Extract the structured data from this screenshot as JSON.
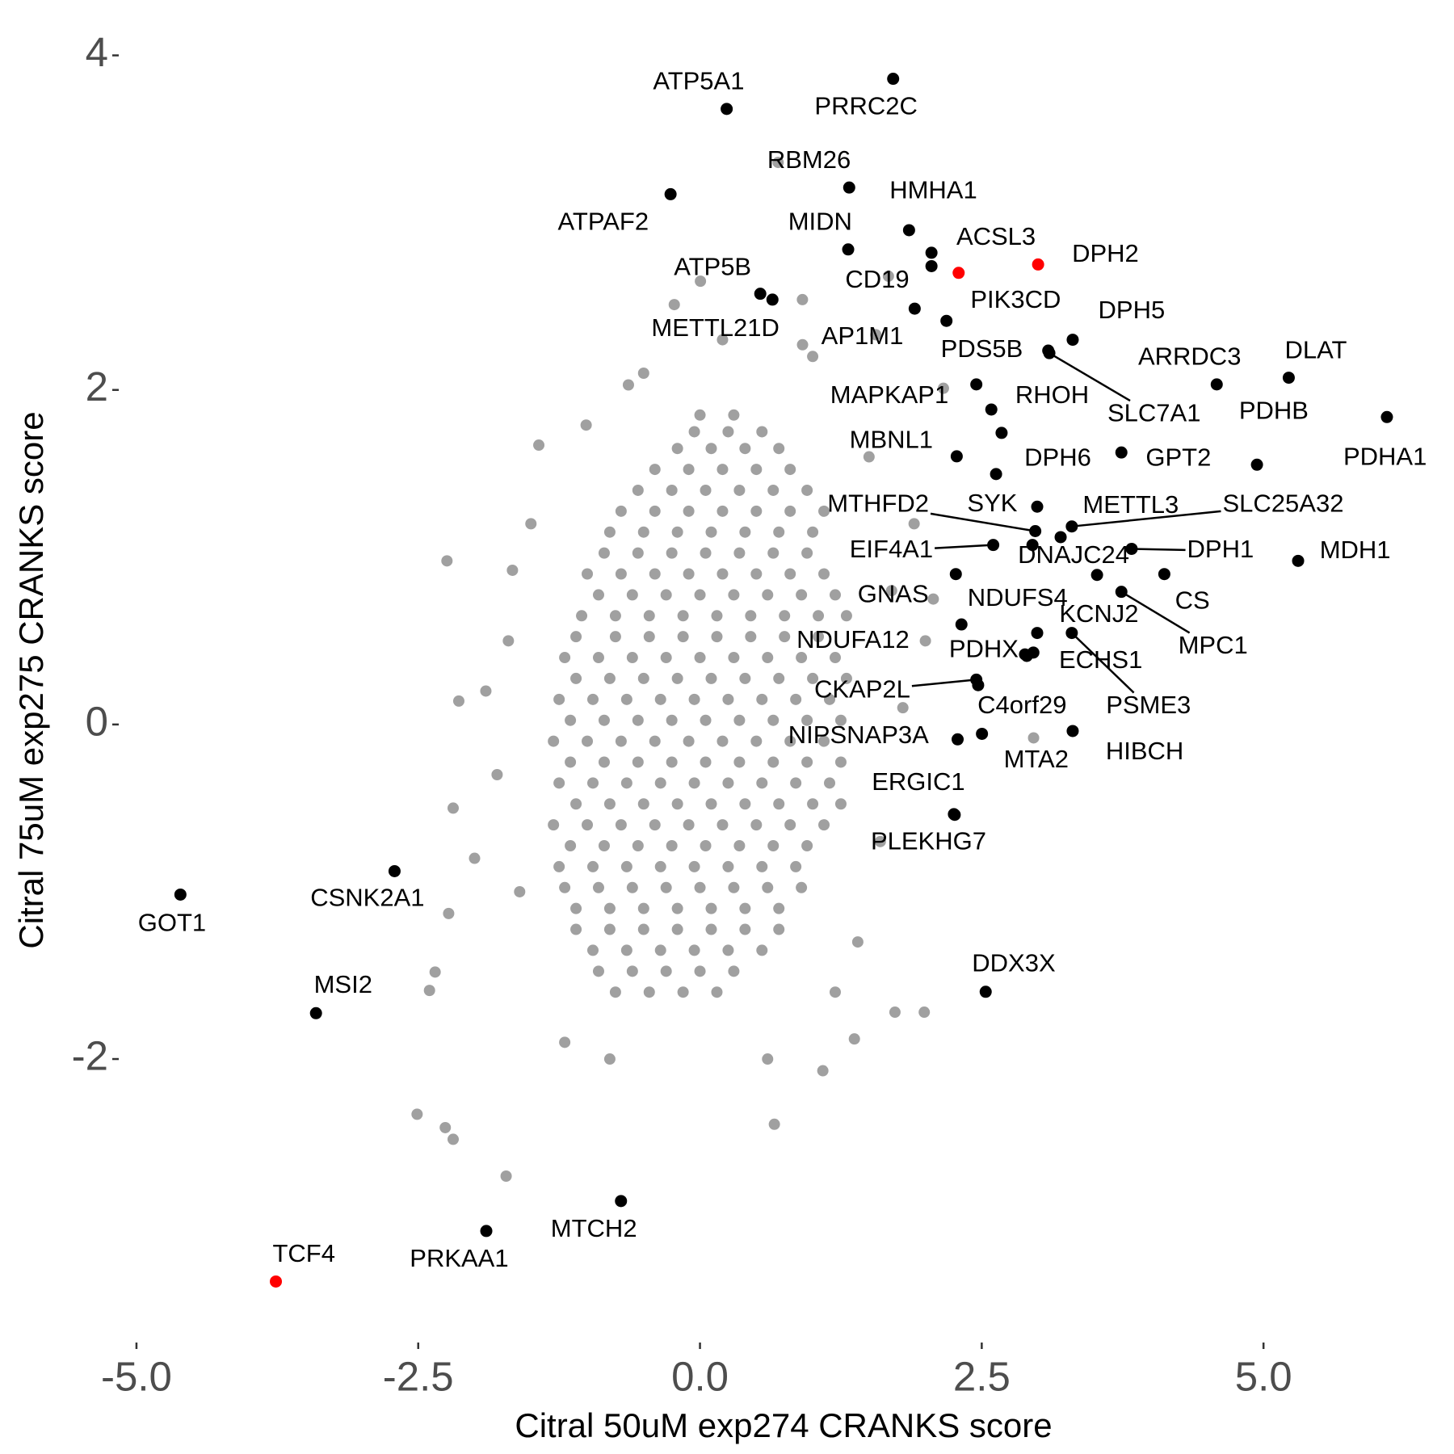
{
  "chart_data": {
    "type": "scatter",
    "x_label": "Citral 50uM exp274 CRANKS score",
    "y_label": "Citral 75uM exp275 CRANKS score",
    "xlim": [
      -5.15,
      6.64
    ],
    "ylim": [
      -3.69,
      4.22
    ],
    "xticks": [
      {
        "value": -5,
        "label": "-5.0"
      },
      -2.5,
      {
        "value": 0,
        "label": "0.0"
      },
      2.5,
      {
        "value": 5,
        "label": "5.0"
      }
    ],
    "yticks": [
      -2,
      0,
      2,
      4
    ],
    "grid": false,
    "series": [
      {
        "color": "#a0a0a0",
        "x": [
          -0.75,
          -0.45,
          -0.15,
          0.15,
          -0.95,
          -0.65,
          -0.35,
          -0.05,
          0.25,
          0.55,
          -1.1,
          -0.8,
          -0.5,
          -0.2,
          0.1,
          0.4,
          0.7,
          -1.25,
          -0.95,
          -0.65,
          -0.35,
          -0.05,
          0.25,
          0.55,
          0.85,
          -1.3,
          -1.0,
          -0.7,
          -0.4,
          -0.1,
          0.2,
          0.5,
          0.8,
          1.1,
          -1.25,
          -0.95,
          -0.65,
          -0.35,
          -0.05,
          0.25,
          0.55,
          0.85,
          1.15,
          -1.3,
          -1.0,
          -0.7,
          -0.4,
          -0.1,
          0.2,
          0.5,
          0.8,
          1.1,
          -1.25,
          -0.95,
          -0.65,
          -0.35,
          -0.05,
          0.25,
          0.55,
          0.85,
          1.15,
          -1.2,
          -0.9,
          -0.6,
          -0.3,
          0,
          0.3,
          0.6,
          0.9,
          1.2,
          -1.05,
          -0.75,
          -0.45,
          -0.15,
          0.15,
          0.45,
          0.75,
          1.05,
          1.3,
          -1.0,
          -0.7,
          -0.4,
          -0.1,
          0.2,
          0.5,
          0.8,
          1.1,
          -0.8,
          -0.5,
          -0.2,
          0.1,
          0.4,
          0.7,
          1.0,
          -0.55,
          -0.25,
          0.05,
          0.35,
          0.65,
          0.95,
          -0.2,
          0.1,
          0.4,
          0.7,
          0,
          0.3,
          -0.9,
          -0.6,
          -0.3,
          0,
          0.3,
          -1.1,
          -0.8,
          -0.5,
          -0.2,
          0.1,
          0.4,
          0.7,
          -1.2,
          -0.9,
          -0.6,
          -0.3,
          0,
          0.3,
          0.6,
          0.9,
          -1.15,
          -0.85,
          -0.55,
          -0.25,
          0.05,
          0.35,
          0.65,
          0.95,
          -1.1,
          -0.8,
          -0.5,
          -0.2,
          0.1,
          0.4,
          0.7,
          1.0,
          1.25,
          -1.15,
          -0.85,
          -0.55,
          -0.25,
          0.05,
          0.35,
          0.65,
          0.95,
          1.25,
          -1.15,
          -0.85,
          -0.55,
          -0.25,
          0.05,
          0.35,
          0.65,
          0.95,
          1.25,
          -1.1,
          -0.8,
          -0.5,
          -0.2,
          0.1,
          0.4,
          0.7,
          1.0,
          1.3,
          -1.1,
          -0.75,
          -0.45,
          -0.15,
          0.15,
          0.45,
          0.75,
          1.05,
          -0.9,
          -0.6,
          -0.3,
          0,
          0.3,
          0.6,
          0.9,
          1.2,
          -0.85,
          -0.55,
          -0.25,
          0.05,
          0.35,
          0.65,
          0.95,
          -0.7,
          -0.4,
          -0.1,
          0.2,
          0.5,
          0.8,
          1.1,
          -0.4,
          -0.1,
          0.2,
          0.5,
          0.8,
          -0.05,
          0.25,
          0.55,
          -2.245,
          -1.664,
          -1.01,
          -1.43,
          -0.635,
          0.004,
          -0.228,
          0.693,
          1.672,
          0.909,
          0.91,
          -2.14,
          -2.19,
          -2.51,
          -2.26,
          -2.19,
          -1.72,
          0.66,
          1.09,
          1.73,
          1.99,
          1.37,
          2.96,
          2.07,
          1.56,
          2.16,
          -2.4,
          -2.35,
          -2.23,
          -1.7,
          -1.8,
          -1.6,
          -1.5,
          1.7,
          1.8,
          1.6,
          1.5,
          -1.2,
          0.6,
          1.0,
          -0.5,
          1.9,
          -2.0,
          1.4,
          -1.9,
          0.2,
          1.2,
          -0.8,
          2.0
        ],
        "values": [
          -1.6,
          -1.6,
          -1.6,
          -1.6,
          -1.35,
          -1.35,
          -1.35,
          -1.35,
          -1.35,
          -1.35,
          -1.1,
          -1.1,
          -1.1,
          -1.1,
          -1.1,
          -1.1,
          -1.1,
          -0.85,
          -0.85,
          -0.85,
          -0.85,
          -0.85,
          -0.85,
          -0.85,
          -0.85,
          -0.6,
          -0.6,
          -0.6,
          -0.6,
          -0.6,
          -0.6,
          -0.6,
          -0.6,
          -0.6,
          -0.35,
          -0.35,
          -0.35,
          -0.35,
          -0.35,
          -0.35,
          -0.35,
          -0.35,
          -0.35,
          -0.1,
          -0.1,
          -0.1,
          -0.1,
          -0.1,
          -0.1,
          -0.1,
          -0.1,
          -0.1,
          0.15,
          0.15,
          0.15,
          0.15,
          0.15,
          0.15,
          0.15,
          0.15,
          0.15,
          0.4,
          0.4,
          0.4,
          0.4,
          0.4,
          0.4,
          0.4,
          0.4,
          0.4,
          0.65,
          0.65,
          0.65,
          0.65,
          0.65,
          0.65,
          0.65,
          0.65,
          0.65,
          0.9,
          0.9,
          0.9,
          0.9,
          0.9,
          0.9,
          0.9,
          0.9,
          1.15,
          1.15,
          1.15,
          1.15,
          1.15,
          1.15,
          1.15,
          1.4,
          1.4,
          1.4,
          1.4,
          1.4,
          1.4,
          1.65,
          1.65,
          1.65,
          1.65,
          1.85,
          1.85,
          -1.475,
          -1.475,
          -1.475,
          -1.475,
          -1.475,
          -1.225,
          -1.225,
          -1.225,
          -1.225,
          -1.225,
          -1.225,
          -1.225,
          -0.975,
          -0.975,
          -0.975,
          -0.975,
          -0.975,
          -0.975,
          -0.975,
          -0.975,
          -0.725,
          -0.725,
          -0.725,
          -0.725,
          -0.725,
          -0.725,
          -0.725,
          -0.725,
          -0.475,
          -0.475,
          -0.475,
          -0.475,
          -0.475,
          -0.475,
          -0.475,
          -0.475,
          -0.475,
          -0.225,
          -0.225,
          -0.225,
          -0.225,
          -0.225,
          -0.225,
          -0.225,
          -0.225,
          -0.225,
          0.025,
          0.025,
          0.025,
          0.025,
          0.025,
          0.025,
          0.025,
          0.025,
          0.025,
          0.275,
          0.275,
          0.275,
          0.275,
          0.275,
          0.275,
          0.275,
          0.275,
          0.275,
          0.525,
          0.525,
          0.525,
          0.525,
          0.525,
          0.525,
          0.525,
          0.525,
          0.775,
          0.775,
          0.775,
          0.775,
          0.775,
          0.775,
          0.775,
          0.775,
          1.025,
          1.025,
          1.025,
          1.025,
          1.025,
          1.025,
          1.025,
          1.275,
          1.275,
          1.275,
          1.275,
          1.275,
          1.275,
          1.275,
          1.525,
          1.525,
          1.525,
          1.525,
          1.525,
          1.75,
          1.75,
          1.75,
          0.978,
          0.922,
          1.79,
          1.67,
          2.03,
          2.65,
          2.51,
          3.36,
          2.68,
          2.54,
          2.27,
          0.14,
          -0.5,
          -2.33,
          -2.41,
          -2.48,
          -2.7,
          -2.39,
          -2.07,
          -1.72,
          -1.72,
          -1.88,
          -0.08,
          0.75,
          2.33,
          2.01,
          -1.59,
          -1.48,
          -1.13,
          0.5,
          -0.3,
          -1.0,
          1.2,
          0.8,
          0.1,
          -0.7,
          1.6,
          -1.9,
          -2.0,
          2.2,
          2.1,
          1.2,
          -0.8,
          -1.3,
          0.2,
          2.3,
          -1.6,
          -2.0,
          0.5
        ]
      },
      {
        "color": "#000000",
        "labels": [
          "ATP5A1",
          "PRRC2C",
          "RBM26",
          "HMHA1",
          "ATPAF2",
          "MIDN",
          null,
          "CD19",
          "ATP5B",
          "METTL21D",
          "PIK3CD",
          "AP1M1",
          "DPH5",
          "PDS5B",
          "SLC7A1",
          "ARRDC3",
          "DLAT",
          "PDHB",
          "PDHA1",
          "MAPKAP1",
          "RHOH",
          null,
          "MBNL1",
          "DPH6",
          "GPT2",
          "SYK",
          "MTHFD2",
          "METTL3",
          "SLC25A32",
          "EIF4A1",
          "DNAJC24",
          "DPH1",
          "MDH1",
          "CS",
          null,
          "GNAS",
          "NDUFS4",
          "KCNJ2",
          "MPC1",
          "NDUFA12",
          "PDHX",
          "ECHS1",
          "PSME3",
          "CKAP2L",
          "C4orf29",
          "NIPSNAP3A",
          "MTA2",
          "HIBCH",
          "ERGIC1",
          "PLEKHG7",
          "DDX3X",
          "CSNK2A1",
          "GOT1",
          "MSI2",
          "MTCH2",
          "PRKAA1"
        ],
        "x": [
          0.237,
          1.714,
          1.324,
          1.855,
          -0.261,
          1.315,
          2.054,
          2.054,
          0.535,
          0.643,
          1.905,
          2.187,
          3.307,
          3.09,
          3.1,
          4.585,
          5.224,
          4.942,
          6.095,
          2.452,
          2.585,
          2.676,
          2.278,
          2.627,
          3.739,
          2.992,
          2.975,
          3.2,
          3.299,
          2.602,
          2.95,
          3.83,
          5.307,
          4.12,
          3.523,
          2.27,
          2.32,
          2.992,
          3.739,
          2.884,
          2.958,
          2.9,
          3.299,
          2.452,
          2.468,
          2.286,
          2.502,
          3.307,
          2.253,
          2.26,
          2.535,
          -2.71,
          -4.61,
          -3.407,
          -0.701,
          -1.896
        ],
        "values": [
          3.68,
          3.86,
          3.21,
          2.955,
          3.17,
          2.84,
          2.82,
          2.74,
          2.575,
          2.54,
          2.486,
          2.413,
          2.3,
          2.235,
          2.22,
          2.033,
          2.073,
          1.553,
          1.838,
          2.033,
          1.883,
          1.743,
          1.603,
          1.497,
          1.626,
          1.302,
          1.156,
          1.12,
          1.184,
          1.073,
          1.073,
          1.05,
          0.978,
          0.899,
          0.894,
          0.899,
          0.598,
          0.547,
          0.793,
          0.419,
          0.43,
          0.41,
          0.547,
          0.268,
          0.235,
          -0.089,
          -0.056,
          -0.039,
          -0.536,
          -0.54,
          -1.598,
          -0.877,
          -1.017,
          -1.726,
          -2.849,
          -3.028
        ]
      },
      {
        "color": "#ff0000",
        "labels": [
          "DPH2",
          "ACSL3",
          "TCF4"
        ],
        "x": [
          3.0,
          2.295,
          -3.763
        ],
        "values": [
          2.75,
          2.7,
          -3.33
        ]
      }
    ]
  }
}
